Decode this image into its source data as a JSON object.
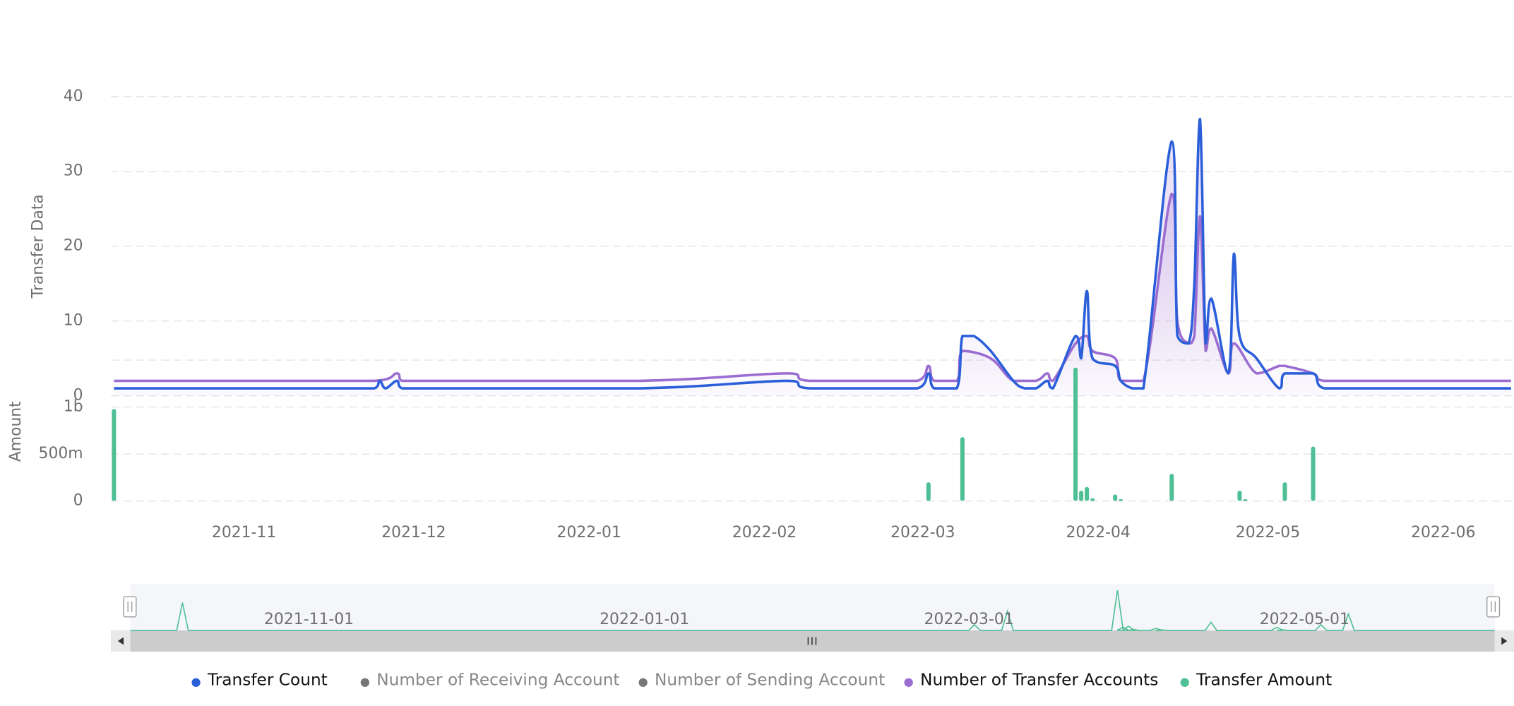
{
  "chart_data": [
    {
      "type": "line",
      "ylabel": "Transfer Data",
      "ylim": [
        0,
        40
      ],
      "yticks": [
        0,
        10,
        20,
        30,
        40
      ],
      "grid": true,
      "xticks": [
        {
          "value": "2021-11-01",
          "label": "2021-11"
        },
        {
          "value": "2021-12-01",
          "label": "2021-12"
        },
        {
          "value": "2022-01-01",
          "label": "2022-01"
        },
        {
          "value": "2022-02-01",
          "label": "2022-02"
        },
        {
          "value": "2022-03-01",
          "label": "2022-03"
        },
        {
          "value": "2022-04-01",
          "label": "2022-04"
        },
        {
          "value": "2022-05-01",
          "label": "2022-05"
        },
        {
          "value": "2022-06-01",
          "label": "2022-06"
        }
      ],
      "xlim": [
        "2021-10-09",
        "2022-06-13"
      ],
      "series": [
        {
          "name": "Transfer Count",
          "color": "#2b5fd9",
          "visible": true,
          "x": [
            "2021-10-09",
            "2021-11-24",
            "2021-11-25",
            "2021-11-26",
            "2021-11-28",
            "2021-11-29",
            "2022-01-10",
            "2022-02-05",
            "2022-02-09",
            "2022-02-28",
            "2022-03-02",
            "2022-03-03",
            "2022-03-07",
            "2022-03-08",
            "2022-03-10",
            "2022-03-13",
            "2022-03-17",
            "2022-03-19",
            "2022-03-21",
            "2022-03-23",
            "2022-03-24",
            "2022-03-28",
            "2022-03-29",
            "2022-03-30",
            "2022-03-31",
            "2022-04-04",
            "2022-04-05",
            "2022-04-07",
            "2022-04-09",
            "2022-04-14",
            "2022-04-15",
            "2022-04-17",
            "2022-04-18",
            "2022-04-19",
            "2022-04-20",
            "2022-04-21",
            "2022-04-24",
            "2022-04-25",
            "2022-04-26",
            "2022-04-29",
            "2022-05-03",
            "2022-05-04",
            "2022-05-09",
            "2022-05-11",
            "2022-06-13"
          ],
          "values": [
            1,
            1,
            2,
            1,
            2,
            1,
            1,
            2,
            1,
            1,
            3,
            1,
            1,
            8,
            8,
            6,
            2,
            1,
            1,
            2,
            1,
            8,
            5,
            14,
            5,
            4,
            2,
            1,
            1,
            34,
            8,
            7,
            15,
            37,
            7,
            13,
            3,
            19,
            8,
            5,
            1,
            3,
            3,
            1,
            1
          ]
        },
        {
          "name": "Number of Receiving Account",
          "color": "#777777",
          "visible": false,
          "x": [],
          "values": []
        },
        {
          "name": "Number of Sending Account",
          "color": "#777777",
          "visible": false,
          "x": [],
          "values": []
        },
        {
          "name": "Number of Transfer Accounts",
          "color": "#9b6dd1",
          "visible": true,
          "x": [
            "2021-10-09",
            "2021-11-24",
            "2021-11-28",
            "2021-11-29",
            "2022-01-10",
            "2022-02-05",
            "2022-02-09",
            "2022-02-28",
            "2022-03-02",
            "2022-03-03",
            "2022-03-07",
            "2022-03-08",
            "2022-03-13",
            "2022-03-17",
            "2022-03-21",
            "2022-03-23",
            "2022-03-24",
            "2022-03-28",
            "2022-03-30",
            "2022-03-31",
            "2022-04-04",
            "2022-04-05",
            "2022-04-09",
            "2022-04-14",
            "2022-04-15",
            "2022-04-17",
            "2022-04-18",
            "2022-04-19",
            "2022-04-20",
            "2022-04-21",
            "2022-04-24",
            "2022-04-25",
            "2022-04-29",
            "2022-05-03",
            "2022-05-04",
            "2022-05-09",
            "2022-05-11",
            "2022-06-13"
          ],
          "values": [
            2,
            2,
            3,
            2,
            2,
            3,
            2,
            2,
            4,
            2,
            2,
            6,
            5,
            2,
            2,
            3,
            2,
            7,
            8,
            6,
            5,
            2,
            2,
            27,
            10,
            7,
            8,
            24,
            6,
            9,
            3,
            7,
            3,
            4,
            4,
            3,
            2,
            2
          ]
        }
      ]
    },
    {
      "type": "bar",
      "ylabel": "Amount",
      "ylim": [
        0,
        1500000000
      ],
      "yticks": [
        0,
        {
          "value": 500000000,
          "label": "500m"
        },
        {
          "value": 1000000000,
          "label": "1b"
        }
      ],
      "grid": true,
      "series": [
        {
          "name": "Transfer Amount",
          "color": "#4fbf95",
          "visible": true,
          "x": [
            "2021-10-09",
            "2022-03-02",
            "2022-03-08",
            "2022-03-28",
            "2022-03-29",
            "2022-03-30",
            "2022-03-31",
            "2022-04-04",
            "2022-04-05",
            "2022-04-14",
            "2022-04-26",
            "2022-04-27",
            "2022-05-04",
            "2022-05-09"
          ],
          "values": [
            980000000,
            200000000,
            680000000,
            1420000000,
            110000000,
            150000000,
            30000000,
            70000000,
            20000000,
            290000000,
            110000000,
            20000000,
            200000000,
            580000000
          ]
        }
      ]
    }
  ],
  "dataZoom": {
    "labels": [
      "2021-11-01",
      "2022-01-01",
      "2022-03-01",
      "2022-05-01"
    ]
  }
}
